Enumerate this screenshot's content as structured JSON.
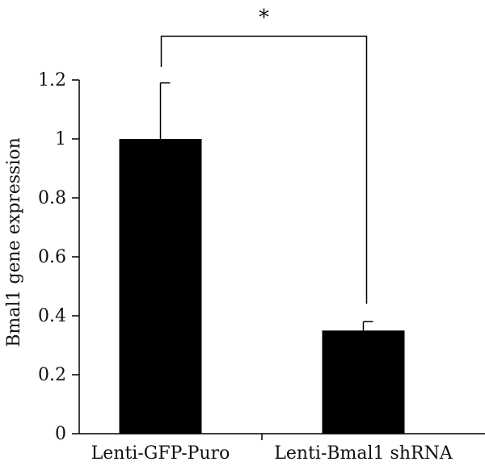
{
  "chart_data": {
    "type": "bar",
    "categories": [
      "Lenti-GFP-Puro",
      "Lenti-Bmal1 shRNA"
    ],
    "values": [
      1.0,
      0.35
    ],
    "error_upper": [
      1.19,
      0.38
    ],
    "title": "",
    "xlabel": "",
    "ylabel": "Bmal1 gene expression",
    "ylim": [
      0,
      1.2
    ],
    "yticks": [
      0,
      0.2,
      0.4,
      0.6,
      0.8,
      1,
      1.2
    ],
    "ytick_labels": [
      "0",
      "0.2",
      "0.4",
      "0.6",
      "0.8",
      "1",
      "1.2"
    ],
    "bar_color": "#000000",
    "grid": false,
    "annotation": "*"
  }
}
